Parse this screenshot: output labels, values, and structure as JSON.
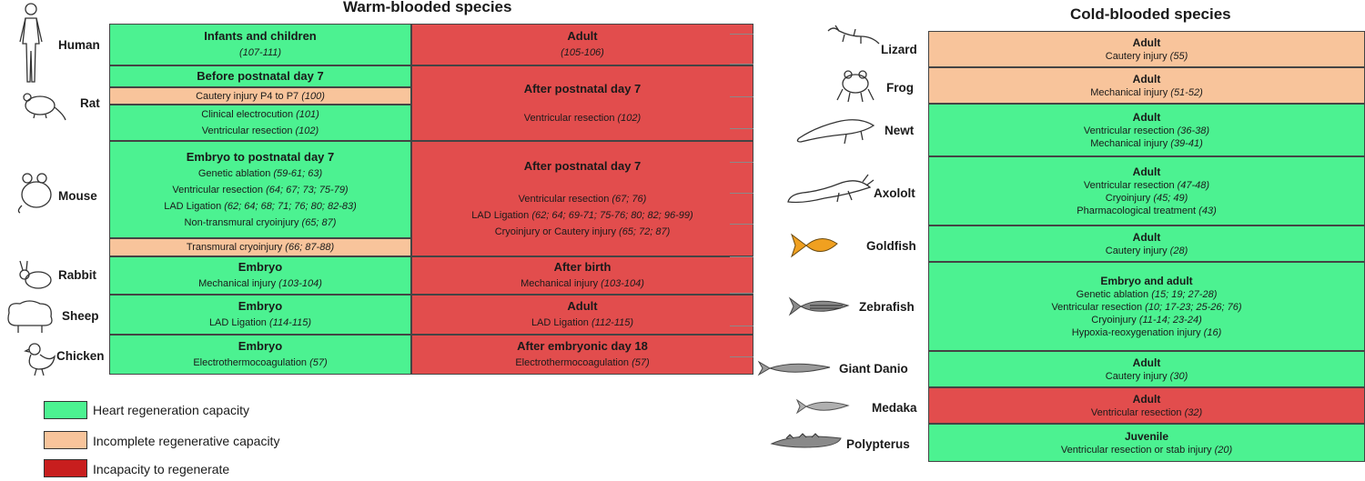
{
  "warm": {
    "title": "Warm-blooded species",
    "species": [
      {
        "name": "Human",
        "icon": "human-icon"
      },
      {
        "name": "Rat",
        "icon": "rat-icon"
      },
      {
        "name": "Mouse",
        "icon": "mouse-icon"
      },
      {
        "name": "Rabbit",
        "icon": "rabbit-icon"
      },
      {
        "name": "Sheep",
        "icon": "sheep-icon"
      },
      {
        "name": "Chicken",
        "icon": "chicken-icon"
      }
    ],
    "left": [
      {
        "head": "Infants and children",
        "lines": [
          {
            "text": "",
            "ref": "(107-111)"
          }
        ]
      },
      {
        "head": "Before postnatal day 7",
        "lines": []
      },
      {
        "lines": [
          {
            "text": "Cautery injury P4 to P7 ",
            "ref": "(100)"
          }
        ]
      },
      {
        "lines": [
          {
            "text": "Clinical electrocution ",
            "ref": "(101)"
          },
          {
            "text": "Ventricular resection ",
            "ref": "(102)"
          }
        ]
      },
      {
        "head": "Embryo to postnatal day 7",
        "lines": [
          {
            "text": "Genetic ablation ",
            "ref": "(59-61; 63)"
          },
          {
            "text": "Ventricular resection ",
            "ref": "(64; 67; 73; 75-79)"
          },
          {
            "text": "LAD Ligation ",
            "ref": "(62; 64; 68; 71; 76; 80; 82-83)"
          },
          {
            "text": "Non-transmural cryoinjury ",
            "ref": "(65; 87)"
          }
        ]
      },
      {
        "lines": [
          {
            "text": "Transmural cryoinjury ",
            "ref": "(66; 87-88)"
          }
        ]
      },
      {
        "head": "Embryo",
        "lines": [
          {
            "text": "Mechanical injury ",
            "ref": "(103-104)"
          }
        ]
      },
      {
        "head": "Embryo",
        "lines": [
          {
            "text": "LAD Ligation ",
            "ref": "(114-115)"
          }
        ]
      },
      {
        "head": "Embryo",
        "lines": [
          {
            "text": "Electrothermocoagulation ",
            "ref": "(57)"
          }
        ]
      }
    ],
    "right": [
      {
        "head": "Adult",
        "lines": [
          {
            "text": "",
            "ref": "(105-106)"
          }
        ]
      },
      {
        "head": "After postnatal day 7",
        "lines": [
          {
            "text": "Ventricular resection ",
            "ref": "(102)"
          }
        ]
      },
      {
        "head": "After postnatal day 7",
        "lines": [
          {
            "text": "Ventricular resection ",
            "ref": "(67; 76)"
          },
          {
            "text": "LAD Ligation ",
            "ref": "(62; 64; 69-71; 75-76; 80; 82; 96-99)"
          },
          {
            "text": "Cryoinjury or Cautery injury ",
            "ref": "(65; 72; 87)"
          }
        ]
      },
      {
        "head": "After birth",
        "lines": [
          {
            "text": "Mechanical injury ",
            "ref": "(103-104)"
          }
        ]
      },
      {
        "head": "Adult",
        "lines": [
          {
            "text": "LAD Ligation ",
            "ref": "(112-115)"
          }
        ]
      },
      {
        "head": "After embryonic day 18",
        "lines": [
          {
            "text": "Electrothermocoagulation ",
            "ref": "(57)"
          }
        ]
      }
    ]
  },
  "cold": {
    "title": "Cold-blooded species",
    "species": [
      {
        "name": "Lizard",
        "icon": "lizard-icon"
      },
      {
        "name": "Frog",
        "icon": "frog-icon"
      },
      {
        "name": "Newt",
        "icon": "newt-icon"
      },
      {
        "name": "Axololt",
        "icon": "axolotl-icon"
      },
      {
        "name": "Goldfish",
        "icon": "goldfish-icon"
      },
      {
        "name": "Zebrafish",
        "icon": "zebrafish-icon"
      },
      {
        "name": "Giant Danio",
        "icon": "giant-danio-icon"
      },
      {
        "name": "Medaka",
        "icon": "medaka-icon"
      },
      {
        "name": "Polypterus",
        "icon": "polypterus-icon"
      }
    ],
    "cells": [
      {
        "head": "Adult",
        "lines": [
          {
            "text": "Cautery injury ",
            "ref": "(55)"
          }
        ]
      },
      {
        "head": "Adult",
        "lines": [
          {
            "text": "Mechanical injury ",
            "ref": "(51-52)"
          }
        ]
      },
      {
        "head": "Adult",
        "lines": [
          {
            "text": "Ventricular resection ",
            "ref": " (36-38)"
          },
          {
            "text": "Mechanical injury ",
            "ref": "(39-41)"
          }
        ]
      },
      {
        "head": "Adult",
        "lines": [
          {
            "text": "Ventricular resection ",
            "ref": "(47-48)"
          },
          {
            "text": "Cryoinjury ",
            "ref": "(45; 49)"
          },
          {
            "text": "Pharmacological treatment ",
            "ref": "(43)"
          }
        ]
      },
      {
        "head": "Adult",
        "lines": [
          {
            "text": "Cautery injury ",
            "ref": "(28)"
          }
        ]
      },
      {
        "head": "Embryo and adult",
        "lines": [
          {
            "text": "Genetic ablation ",
            "ref": "(15; 19; 27-28)"
          },
          {
            "text": "Ventricular resection ",
            "ref": "(10; 17-23; 25-26; 76)"
          },
          {
            "text": "Cryoinjury ",
            "ref": "(11-14; 23-24)"
          },
          {
            "text": "Hypoxia-reoxygenation injury ",
            "ref": "(16)"
          }
        ]
      },
      {
        "head": "Adult",
        "lines": [
          {
            "text": "Cautery injury ",
            "ref": "(30)"
          }
        ]
      },
      {
        "head": "Adult",
        "lines": [
          {
            "text": "Ventricular resection ",
            "ref": "(32)"
          }
        ]
      },
      {
        "head": "Juvenile",
        "lines": [
          {
            "text": "Ventricular resection or stab injury ",
            "ref": " (20)"
          }
        ]
      }
    ]
  },
  "legend": [
    {
      "label": "Heart regeneration capacity",
      "color": "#4cf291"
    },
    {
      "label": "Incomplete  regenerative capacity",
      "color": "#f8c49b"
    },
    {
      "label": "Incapacity to regenerate",
      "color": "#c81e1e"
    }
  ],
  "colors": {
    "green": "#4cf291",
    "orange": "#f8c49b",
    "red": "#e24d4d"
  }
}
